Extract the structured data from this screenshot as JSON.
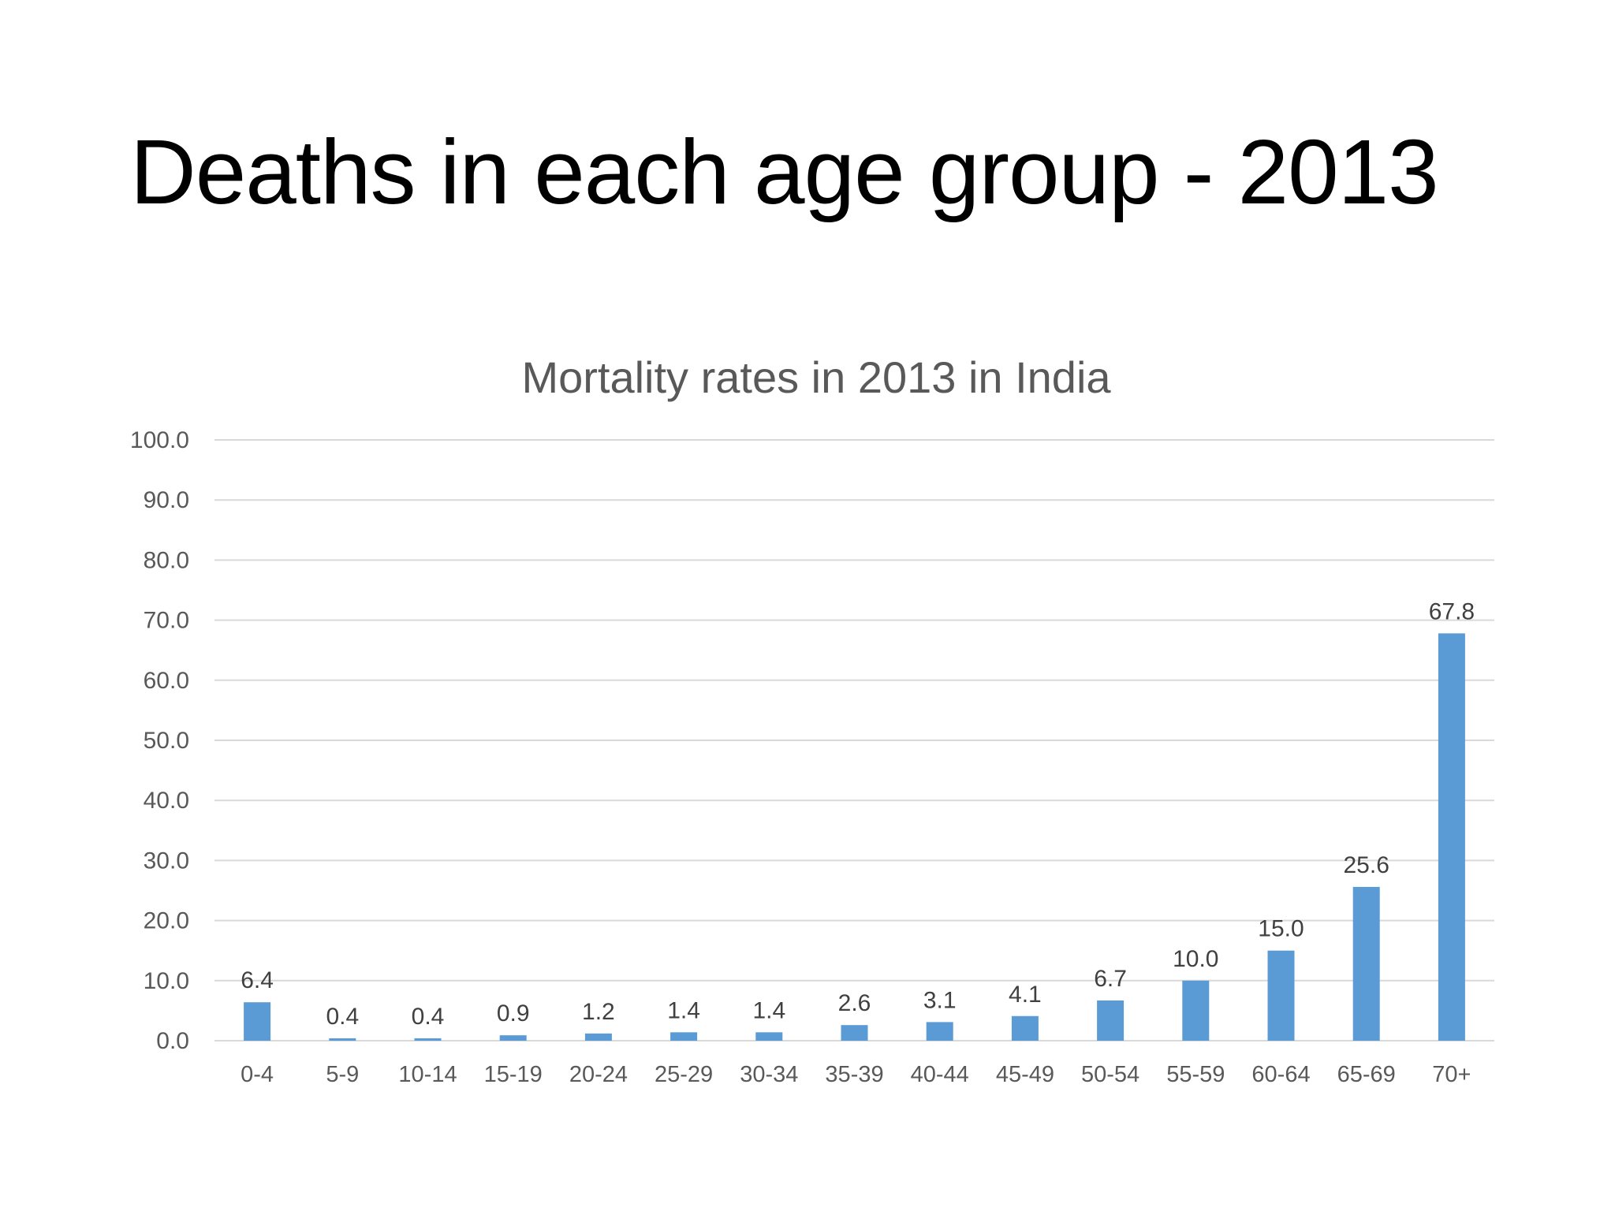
{
  "slide": {
    "title": "Deaths in each age group - 2013"
  },
  "colors": {
    "bar": "#5b9bd5",
    "grid": "#d9d9d9",
    "text": "#595959",
    "data_label": "#404040"
  },
  "chart_data": {
    "type": "bar",
    "title": "Mortality rates in 2013 in India",
    "xlabel": "",
    "ylabel": "",
    "ylim": [
      0,
      100
    ],
    "ytick_step": 10,
    "ytick_labels": [
      "0.0",
      "10.0",
      "20.0",
      "30.0",
      "40.0",
      "50.0",
      "60.0",
      "70.0",
      "80.0",
      "90.0",
      "100.0"
    ],
    "grid": true,
    "legend": "none",
    "categories": [
      "0-4",
      "5-9",
      "10-14",
      "15-19",
      "20-24",
      "25-29",
      "30-34",
      "35-39",
      "40-44",
      "45-49",
      "50-54",
      "55-59",
      "60-64",
      "65-69",
      "70+"
    ],
    "values": [
      6.4,
      0.4,
      0.4,
      0.9,
      1.2,
      1.4,
      1.4,
      2.6,
      3.1,
      4.1,
      6.7,
      10.0,
      15.0,
      25.6,
      67.8
    ],
    "value_labels": [
      "6.4",
      "0.4",
      "0.4",
      "0.9",
      "1.2",
      "1.4",
      "1.4",
      "2.6",
      "3.1",
      "4.1",
      "6.7",
      "10.0",
      "15.0",
      "25.6",
      "67.8"
    ]
  }
}
